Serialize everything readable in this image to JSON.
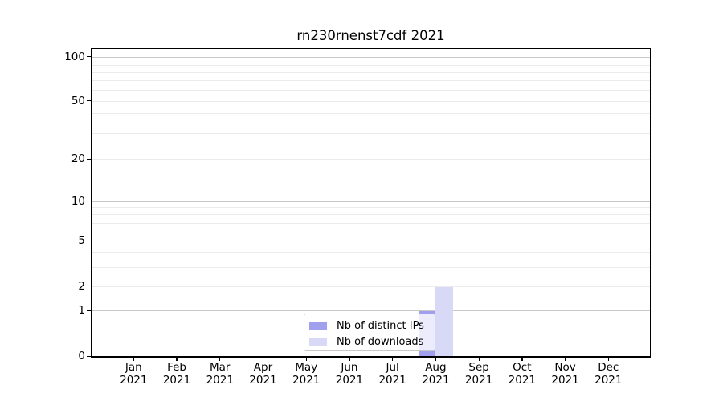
{
  "chart_data": {
    "type": "bar",
    "title": "rn230rnenst7cdf 2021",
    "categories": [
      "Jan 2021",
      "Feb 2021",
      "Mar 2021",
      "Apr 2021",
      "May 2021",
      "Jun 2021",
      "Jul 2021",
      "Aug 2021",
      "Sep 2021",
      "Oct 2021",
      "Nov 2021",
      "Dec 2021"
    ],
    "x_tick_labels": [
      {
        "line1": "Jan",
        "line2": "2021"
      },
      {
        "line1": "Feb",
        "line2": "2021"
      },
      {
        "line1": "Mar",
        "line2": "2021"
      },
      {
        "line1": "Apr",
        "line2": "2021"
      },
      {
        "line1": "May",
        "line2": "2021"
      },
      {
        "line1": "Jun",
        "line2": "2021"
      },
      {
        "line1": "Jul",
        "line2": "2021"
      },
      {
        "line1": "Aug",
        "line2": "2021"
      },
      {
        "line1": "Sep",
        "line2": "2021"
      },
      {
        "line1": "Oct",
        "line2": "2021"
      },
      {
        "line1": "Nov",
        "line2": "2021"
      },
      {
        "line1": "Dec",
        "line2": "2021"
      }
    ],
    "series": [
      {
        "name": "Nb of distinct IPs",
        "color": "#a0a0ee",
        "values": [
          0,
          0,
          0,
          0,
          0,
          0,
          0,
          1,
          0,
          0,
          0,
          0
        ]
      },
      {
        "name": "Nb of downloads",
        "color": "#d8d8f7",
        "values": [
          0,
          0,
          0,
          0,
          0,
          0,
          0,
          2,
          0,
          0,
          0,
          0
        ]
      }
    ],
    "y_ticks": [
      {
        "label": "0",
        "value": 0
      },
      {
        "label": "1",
        "value": 1
      },
      {
        "label": "2",
        "value": 2
      },
      {
        "label": "5",
        "value": 5
      },
      {
        "label": "10",
        "value": 10
      },
      {
        "label": "20",
        "value": 20
      },
      {
        "label": "50",
        "value": 50
      },
      {
        "label": "100",
        "value": 100
      }
    ],
    "yscale": "symlog",
    "ylim": [
      0,
      100
    ],
    "grid": true,
    "legend_position": "inside lower-center",
    "colors": {
      "grid_major": "#c8c8c8",
      "grid_minor": "#ebebeb",
      "axis": "#000000",
      "background": "#ffffff"
    }
  }
}
